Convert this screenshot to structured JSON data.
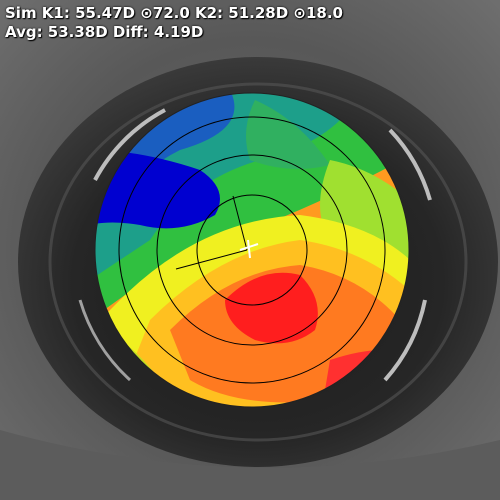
{
  "readout": {
    "line1": "Sim K1: 55.47D ⊙72.0 K2: 51.28D ⊙18.0",
    "line2": "Avg: 53.38D Diff: 4.19D"
  },
  "colors": {
    "map_steep": "#ff1e1e",
    "map_mid": "#ffff00",
    "map_green": "#30c040",
    "map_flat": "#0000d0",
    "overlay_text": "#ffffff"
  }
}
